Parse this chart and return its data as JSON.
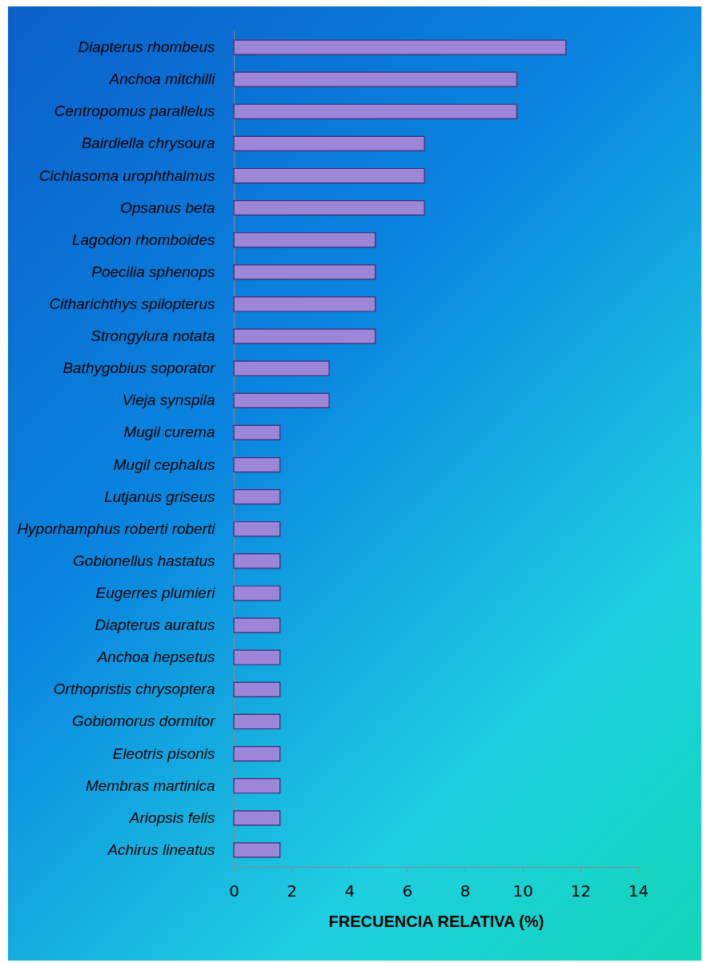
{
  "chart_data": {
    "type": "bar",
    "orientation": "horizontal",
    "xlabel": "FRECUENCIA RELATIVA (%)",
    "categories": [
      "Diapterus rhombeus",
      "Anchoa mitchilli",
      "Centropomus parallelus",
      "Bairdiella chrysoura",
      "Cichlasoma urophthalmus",
      "Opsanus beta",
      "Lagodon rhomboides",
      "Poecilia sphenops",
      "Citharichthys spilopterus",
      "Strongylura notata",
      "Bathygobius soporator",
      "Vieja synspila",
      "Mugil curema",
      "Mugil cephalus",
      "Lutjanus griseus",
      "Hyporhamphus roberti roberti",
      "Gobionellus hastatus",
      "Eugerres plumieri",
      "Diapterus auratus",
      "Anchoa hepsetus",
      "Orthopristis chrysoptera",
      "Gobiomorus dormitor",
      "Eleotris pisonis",
      "Membras martinica",
      "Ariopsis felis",
      "Achirus lineatus"
    ],
    "values": [
      11.5,
      9.8,
      9.8,
      6.6,
      6.6,
      6.6,
      4.9,
      4.9,
      4.9,
      4.9,
      3.3,
      3.3,
      1.6,
      1.6,
      1.6,
      1.6,
      1.6,
      1.6,
      1.6,
      1.6,
      1.6,
      1.6,
      1.6,
      1.6,
      1.6,
      1.6
    ],
    "color": "#9d86d8",
    "xlim": [
      0,
      14
    ],
    "xticks": [
      0,
      2,
      4,
      6,
      8,
      10,
      12,
      14
    ],
    "grid": false
  }
}
